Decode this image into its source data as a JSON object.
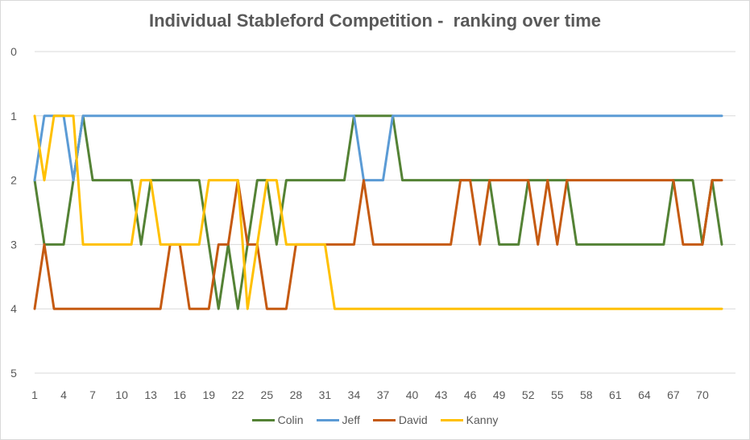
{
  "chart_data": {
    "type": "line",
    "title": "Individual Stableford Competition -  ranking over time",
    "xlabel": "",
    "ylabel": "",
    "y_axis": {
      "reversed": true,
      "range": [
        0,
        5
      ],
      "ticks": [
        0,
        1,
        2,
        3,
        4,
        5
      ]
    },
    "x_axis": {
      "range": [
        1,
        72
      ],
      "tick_labels": [
        1,
        4,
        7,
        10,
        13,
        16,
        19,
        22,
        25,
        28,
        31,
        34,
        37,
        40,
        43,
        46,
        49,
        52,
        55,
        58,
        61,
        64,
        67,
        70
      ]
    },
    "grid": true,
    "legend_position": "bottom",
    "x": [
      1,
      2,
      3,
      4,
      5,
      6,
      7,
      8,
      9,
      10,
      11,
      12,
      13,
      14,
      15,
      16,
      17,
      18,
      19,
      20,
      21,
      22,
      23,
      24,
      25,
      26,
      27,
      28,
      29,
      30,
      31,
      32,
      33,
      34,
      35,
      36,
      37,
      38,
      39,
      40,
      41,
      42,
      43,
      44,
      45,
      46,
      47,
      48,
      49,
      50,
      51,
      52,
      53,
      54,
      55,
      56,
      57,
      58,
      59,
      60,
      61,
      62,
      63,
      64,
      65,
      66,
      67,
      68,
      69,
      70,
      71,
      72
    ],
    "series": [
      {
        "name": "Colin",
        "color": "#548235",
        "values": [
          2,
          3,
          3,
          3,
          2,
          1,
          2,
          2,
          2,
          2,
          2,
          3,
          2,
          2,
          2,
          2,
          2,
          2,
          3,
          4,
          3,
          4,
          3,
          2,
          2,
          3,
          2,
          2,
          2,
          2,
          2,
          2,
          2,
          1,
          1,
          1,
          1,
          1,
          2,
          2,
          2,
          2,
          2,
          2,
          2,
          2,
          2,
          2,
          3,
          3,
          3,
          2,
          2,
          2,
          2,
          2,
          3,
          3,
          3,
          3,
          3,
          3,
          3,
          3,
          3,
          3,
          2,
          2,
          2,
          3,
          2,
          3
        ]
      },
      {
        "name": "Jeff",
        "color": "#5b9bd5",
        "values": [
          2,
          1,
          1,
          1,
          2,
          1,
          1,
          1,
          1,
          1,
          1,
          1,
          1,
          1,
          1,
          1,
          1,
          1,
          1,
          1,
          1,
          1,
          1,
          1,
          1,
          1,
          1,
          1,
          1,
          1,
          1,
          1,
          1,
          1,
          2,
          2,
          2,
          1,
          1,
          1,
          1,
          1,
          1,
          1,
          1,
          1,
          1,
          1,
          1,
          1,
          1,
          1,
          1,
          1,
          1,
          1,
          1,
          1,
          1,
          1,
          1,
          1,
          1,
          1,
          1,
          1,
          1,
          1,
          1,
          1,
          1,
          1
        ]
      },
      {
        "name": "David",
        "color": "#c55a11",
        "values": [
          4,
          3,
          4,
          4,
          4,
          4,
          4,
          4,
          4,
          4,
          4,
          4,
          4,
          4,
          3,
          3,
          4,
          4,
          4,
          3,
          3,
          2,
          3,
          3,
          4,
          4,
          4,
          3,
          3,
          3,
          3,
          3,
          3,
          3,
          2,
          3,
          3,
          3,
          3,
          3,
          3,
          3,
          3,
          3,
          2,
          2,
          3,
          2,
          2,
          2,
          2,
          2,
          3,
          2,
          3,
          2,
          2,
          2,
          2,
          2,
          2,
          2,
          2,
          2,
          2,
          2,
          2,
          3,
          3,
          3,
          2,
          2
        ]
      },
      {
        "name": "Kanny",
        "color": "#ffc000",
        "values": [
          1,
          2,
          1,
          1,
          1,
          3,
          3,
          3,
          3,
          3,
          3,
          2,
          2,
          3,
          3,
          3,
          3,
          3,
          2,
          2,
          2,
          2,
          4,
          3,
          2,
          2,
          3,
          3,
          3,
          3,
          3,
          4,
          4,
          4,
          4,
          4,
          4,
          4,
          4,
          4,
          4,
          4,
          4,
          4,
          4,
          4,
          4,
          4,
          4,
          4,
          4,
          4,
          4,
          4,
          4,
          4,
          4,
          4,
          4,
          4,
          4,
          4,
          4,
          4,
          4,
          4,
          4,
          4,
          4,
          4,
          4,
          4
        ]
      }
    ]
  }
}
